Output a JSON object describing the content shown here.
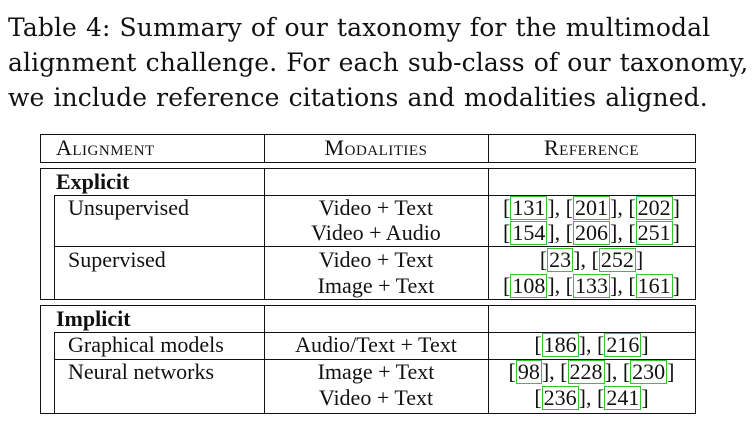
{
  "caption": {
    "lines": [
      "Table 4: Summary of our taxonomy for the multimodal",
      "alignment challenge. For each sub-class of our taxonomy,",
      "we include reference citations and modalities aligned."
    ]
  },
  "table": {
    "headers": [
      "Alignment",
      "Modalities",
      "Reference"
    ],
    "groups": [
      {
        "name": "Explicit",
        "rows": [
          {
            "label": "Unsupervised",
            "modalities": [
              "Video + Text",
              "Video + Audio"
            ],
            "refs": [
              [
                "131",
                "201",
                "202"
              ],
              [
                "154",
                "206",
                "251"
              ]
            ]
          },
          {
            "label": "Supervised",
            "modalities": [
              "Video + Text",
              "Image + Text"
            ],
            "refs": [
              [
                "23",
                "252"
              ],
              [
                "108",
                "133",
                "161"
              ]
            ]
          }
        ]
      },
      {
        "name": "Implicit",
        "rows": [
          {
            "label": "Graphical models",
            "modalities": [
              "Audio/Text + Text"
            ],
            "refs": [
              [
                "186",
                "216"
              ]
            ]
          },
          {
            "label": "Neural networks",
            "modalities": [
              "Image + Text",
              "Video + Text"
            ],
            "refs": [
              [
                "98",
                "228",
                "230"
              ],
              [
                "236",
                "241"
              ]
            ]
          }
        ]
      }
    ]
  },
  "colors": {
    "text": "#111111",
    "citation_box": "#2fc82f"
  }
}
